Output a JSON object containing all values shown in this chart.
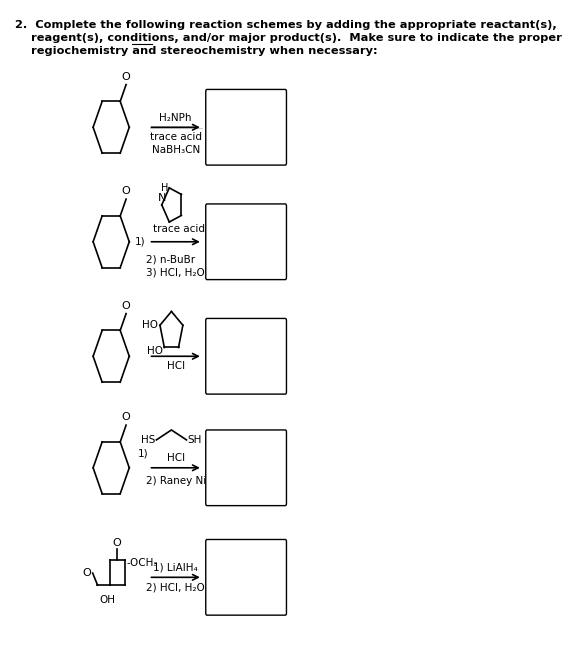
{
  "bg": "#ffffff",
  "title": "2.  Complete the following reaction schemes by adding the appropriate reactant(s),\n    reagent(s), conditions, and/or major product(s).  Make sure to indicate the proper\n    regiochemistry and stereochemistry when necessary:",
  "font_title": 8.2,
  "font_reagent": 7.5,
  "reactions": [
    {
      "id": 1,
      "above_arrow": [
        "H₂NPh"
      ],
      "below_arrow": [
        "trace acid",
        "NaBH₃CN"
      ]
    },
    {
      "id": 2,
      "above_arrow": [
        "1)   trace acid"
      ],
      "below_arrow": [
        "2) n-BuBr",
        "3) HCl, H₂O"
      ]
    },
    {
      "id": 3,
      "above_arrow": [],
      "below_arrow": [
        "HCl"
      ]
    },
    {
      "id": 4,
      "above_arrow": [
        "1)"
      ],
      "below_arrow": [
        "2) Raney Ni"
      ]
    },
    {
      "id": 5,
      "above_arrow": [
        "1) LiAlH₄"
      ],
      "below_arrow": [
        "2) HCl, H₂O"
      ]
    }
  ]
}
